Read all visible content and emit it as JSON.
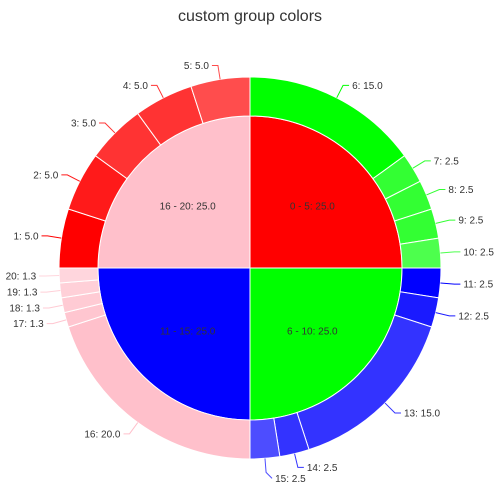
{
  "chart_data": {
    "type": "pie",
    "subtype": "nested",
    "title": "custom group colors",
    "inner": [
      {
        "label": "0 - 5: 25.0",
        "value": 25.0,
        "color": "#ff0000"
      },
      {
        "label": "6 - 10: 25.0",
        "value": 25.0,
        "color": "#00ff00"
      },
      {
        "label": "11 - 15: 25.0",
        "value": 25.0,
        "color": "#0000ff"
      },
      {
        "label": "16 - 20: 25.0",
        "value": 25.0,
        "color": "#ffc0cb"
      }
    ],
    "outer": [
      {
        "label": "6: 15.0",
        "value": 15.0,
        "color": "#00ff00"
      },
      {
        "label": "7: 2.5",
        "value": 2.5,
        "color": "#33ff33"
      },
      {
        "label": "8: 2.5",
        "value": 2.5,
        "color": "#33ff33"
      },
      {
        "label": "9: 2.5",
        "value": 2.5,
        "color": "#33ff33"
      },
      {
        "label": "10: 2.5",
        "value": 2.5,
        "color": "#4dff4d"
      },
      {
        "label": "11: 2.5",
        "value": 2.5,
        "color": "#0000ff"
      },
      {
        "label": "12: 2.5",
        "value": 2.5,
        "color": "#1a1aff"
      },
      {
        "label": "13: 15.0",
        "value": 15.0,
        "color": "#3333ff"
      },
      {
        "label": "14: 2.5",
        "value": 2.5,
        "color": "#3333ff"
      },
      {
        "label": "15: 2.5",
        "value": 2.5,
        "color": "#4d4dff"
      },
      {
        "label": "16: 20.0",
        "value": 20.0,
        "color": "#ffc0cb"
      },
      {
        "label": "17: 1.3",
        "value": 1.25,
        "color": "#ffc6d0"
      },
      {
        "label": "18: 1.3",
        "value": 1.25,
        "color": "#ffcbd4"
      },
      {
        "label": "19: 1.3",
        "value": 1.25,
        "color": "#ffd0d8"
      },
      {
        "label": "20: 1.3",
        "value": 1.25,
        "color": "#ffd6dd"
      },
      {
        "label": "1: 5.0",
        "value": 5.0,
        "color": "#ff0000"
      },
      {
        "label": "2: 5.0",
        "value": 5.0,
        "color": "#ff1a1a"
      },
      {
        "label": "3: 5.0",
        "value": 5.0,
        "color": "#ff3333"
      },
      {
        "label": "4: 5.0",
        "value": 5.0,
        "color": "#ff3333"
      },
      {
        "label": "5: 5.0",
        "value": 5.0,
        "color": "#ff4d4d"
      }
    ]
  }
}
